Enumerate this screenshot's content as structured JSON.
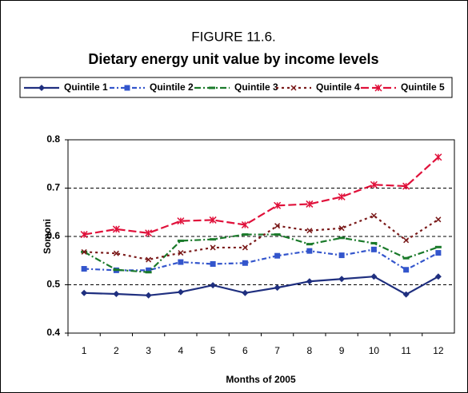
{
  "chart_data": {
    "type": "line",
    "figure_label": "FIGURE 11.6.",
    "title": "Dietary energy unit value by income levels",
    "x_label": "Months of 2005",
    "y_label": "Somoni",
    "categories": [
      "1",
      "2",
      "3",
      "4",
      "5",
      "6",
      "7",
      "8",
      "9",
      "10",
      "11",
      "12"
    ],
    "ylim": [
      0.4,
      0.8
    ],
    "yticks": [
      0.4,
      0.5,
      0.6,
      0.7,
      0.8
    ],
    "grid": true,
    "legend": "top",
    "series": [
      {
        "name": "Quintile 1",
        "color": "#1f2f7f",
        "values": [
          0.483,
          0.481,
          0.478,
          0.485,
          0.499,
          0.483,
          0.494,
          0.507,
          0.512,
          0.517,
          0.48,
          0.517
        ]
      },
      {
        "name": "Quintile 2",
        "color": "#3355cc",
        "values": [
          0.533,
          0.53,
          0.53,
          0.547,
          0.543,
          0.545,
          0.56,
          0.57,
          0.561,
          0.573,
          0.531,
          0.566
        ]
      },
      {
        "name": "Quintile 3",
        "color": "#1a7a2a",
        "values": [
          0.568,
          0.531,
          0.526,
          0.591,
          0.594,
          0.604,
          0.604,
          0.584,
          0.597,
          0.586,
          0.555,
          0.578
        ]
      },
      {
        "name": "Quintile 4",
        "color": "#7a1a1a",
        "values": [
          0.568,
          0.565,
          0.552,
          0.566,
          0.577,
          0.577,
          0.622,
          0.612,
          0.617,
          0.643,
          0.592,
          0.635
        ]
      },
      {
        "name": "Quintile 5",
        "color": "#e0103a",
        "values": [
          0.604,
          0.615,
          0.607,
          0.632,
          0.634,
          0.624,
          0.664,
          0.667,
          0.682,
          0.707,
          0.704,
          0.764
        ]
      }
    ]
  }
}
